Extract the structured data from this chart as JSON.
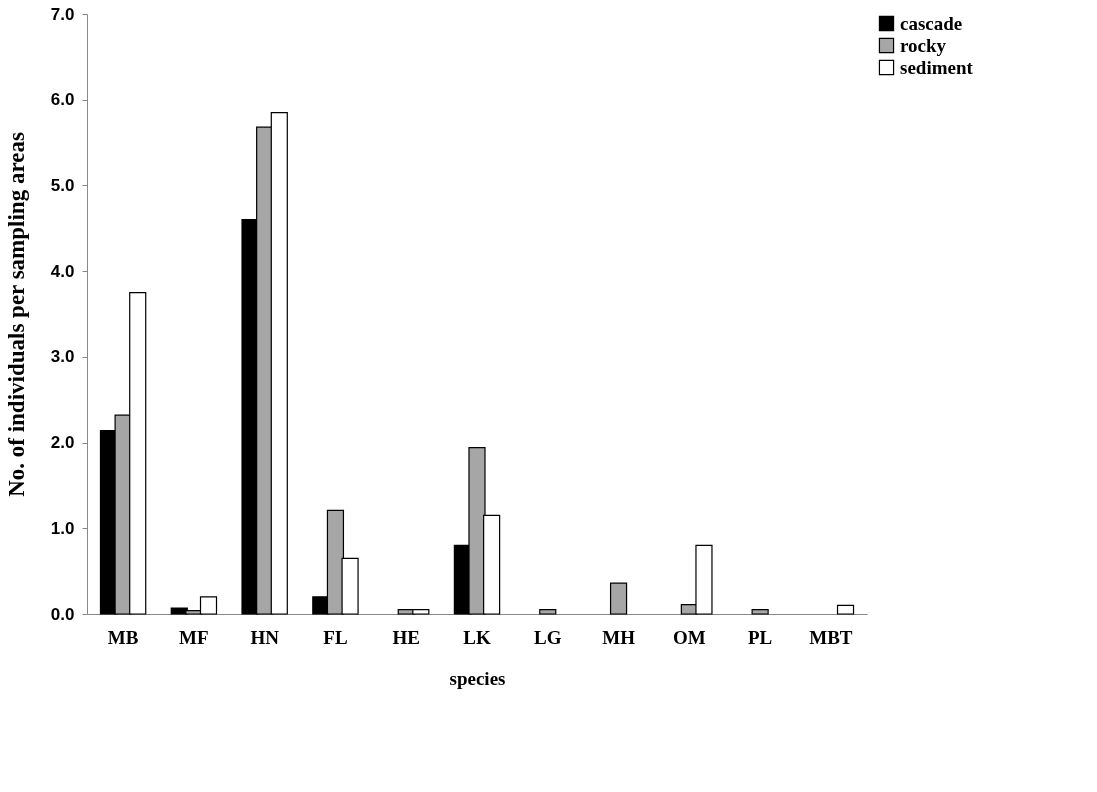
{
  "chart_data": {
    "type": "bar",
    "xlabel": "species",
    "ylabel": "No. of individuals per sampling areas",
    "categories": [
      "MB",
      "MF",
      "HN",
      "FL",
      "HE",
      "LK",
      "LG",
      "MH",
      "OM",
      "PL",
      "MBT"
    ],
    "series": [
      {
        "name": "cascade",
        "color": "#000000",
        "values": [
          2.14,
          0.07,
          4.6,
          0.2,
          null,
          0.8,
          null,
          null,
          null,
          null,
          null
        ]
      },
      {
        "name": "rocky",
        "color": "#a6a6a6",
        "values": [
          2.32,
          0.04,
          5.68,
          1.21,
          0.05,
          1.94,
          0.05,
          0.36,
          0.11,
          0.05,
          null
        ]
      },
      {
        "name": "sediment",
        "color": "#ffffff",
        "values": [
          3.75,
          0.2,
          5.85,
          0.65,
          0.05,
          1.15,
          null,
          null,
          0.8,
          null,
          0.1
        ]
      }
    ],
    "ylim": [
      0,
      7
    ],
    "yticks": [
      {
        "value": 0,
        "label": "0.0"
      },
      {
        "value": 1,
        "label": "1.0"
      },
      {
        "value": 2,
        "label": "2.0"
      },
      {
        "value": 3,
        "label": "3.0"
      },
      {
        "value": 4,
        "label": "4.0"
      },
      {
        "value": 5,
        "label": "5.0"
      },
      {
        "value": 6,
        "label": "6.0"
      },
      {
        "value": 7,
        "label": "7.0"
      }
    ],
    "grid": false,
    "legend": "right"
  }
}
